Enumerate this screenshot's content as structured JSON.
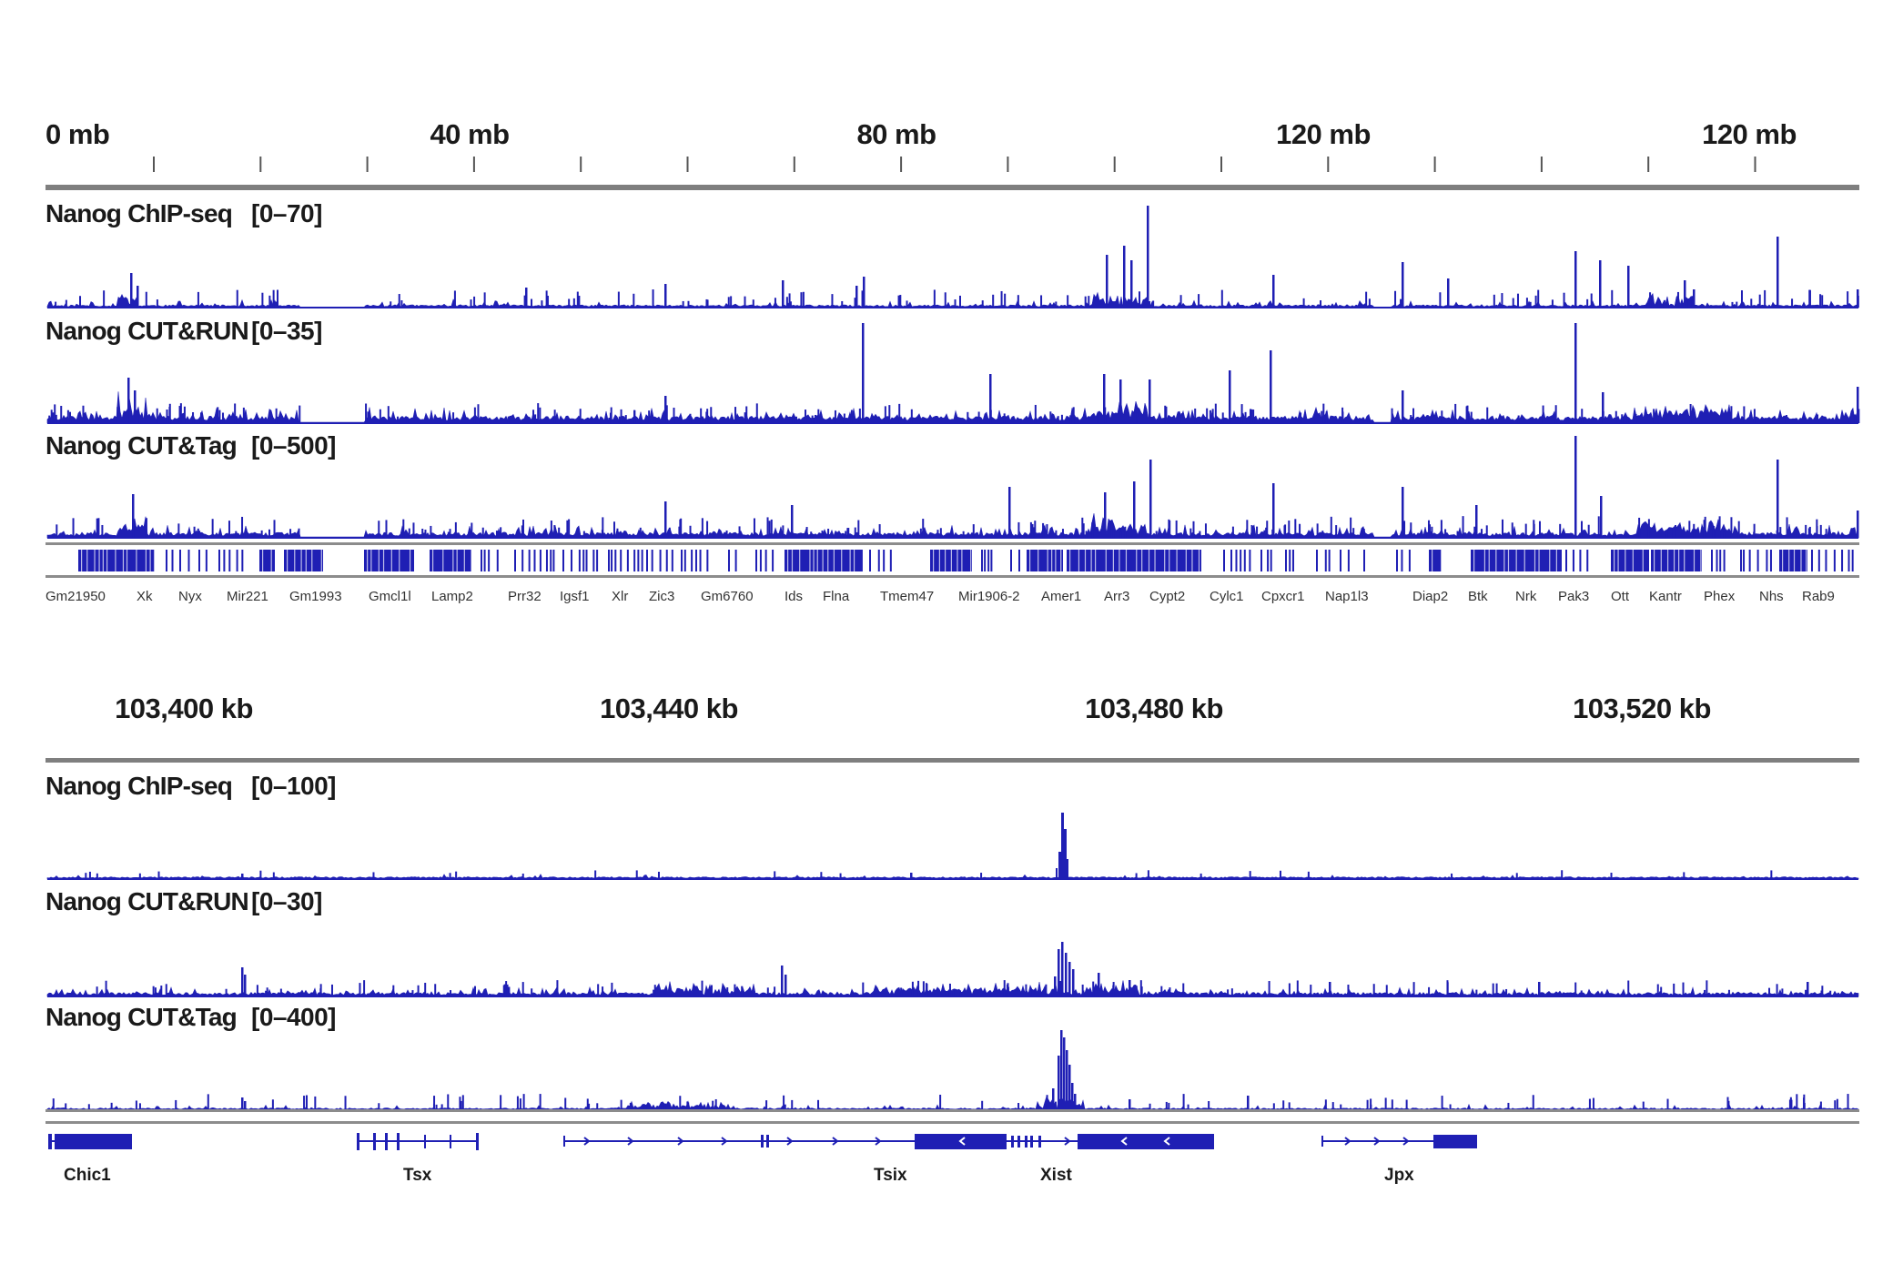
{
  "colors": {
    "signal": "#1f1fb4",
    "text": "#1a1a1a",
    "separator": "#808080"
  },
  "panel_top": {
    "ruler_labels": [
      "0 mb",
      "40 mb",
      "80 mb",
      "120 mb",
      "120 mb"
    ],
    "tracks": [
      {
        "name": "Nanog ChIP-seq",
        "range": "[0–70]"
      },
      {
        "name": "Nanog CUT&RUN",
        "range": "[0–35]"
      },
      {
        "name": "Nanog CUT&Tag",
        "range": "[0–500]"
      }
    ],
    "genes": [
      "Gm21950",
      "Xk",
      "Nyx",
      "Mir221",
      "Gm1993",
      "Gmcl1l",
      "Lamp2",
      "Prr32",
      "Igsf1",
      "Xlr",
      "Zic3",
      "Gm6760",
      "Ids",
      "Flna",
      "Tmem47",
      "Mir1906-2",
      "Amer1",
      "Arr3",
      "Cypt2",
      "Cylc1",
      "Cpxcr1",
      "Nap1l3",
      "Diap2",
      "Btk",
      "Nrk",
      "Pak3",
      "Ott",
      "Kantr",
      "Phex",
      "Nhs",
      "Rab9"
    ]
  },
  "panel_bottom": {
    "ruler_labels": [
      "103,400 kb",
      "103,440 kb",
      "103,480 kb",
      "103,520 kb"
    ],
    "tracks": [
      {
        "name": "Nanog ChIP-seq",
        "range": "[0–100]"
      },
      {
        "name": "Nanog CUT&RUN",
        "range": "[0–30]"
      },
      {
        "name": "Nanog CUT&Tag",
        "range": "[0–400]"
      }
    ],
    "genes": [
      "Chic1",
      "Tsx",
      "Tsix",
      "Xist",
      "Jpx"
    ]
  }
}
